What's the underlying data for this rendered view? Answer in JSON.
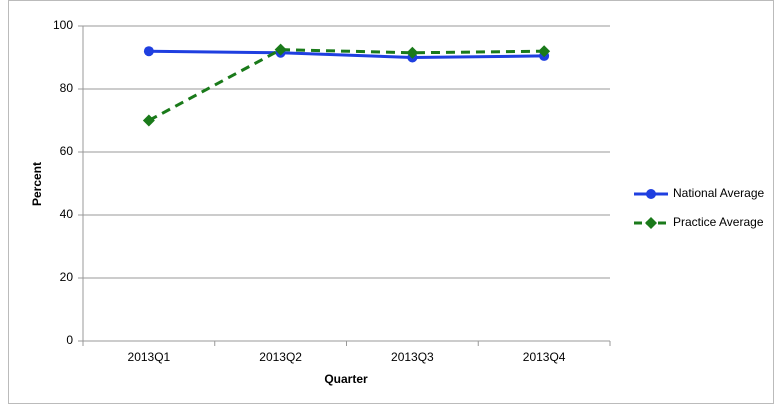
{
  "chart_data": {
    "type": "line",
    "categories": [
      "2013Q1",
      "2013Q2",
      "2013Q3",
      "2013Q4"
    ],
    "x_label": "Quarter",
    "y_label": "Percent",
    "series": [
      {
        "name": "National Average",
        "color": "#1f3fe0",
        "marker": "circle",
        "dash": false,
        "values": [
          92,
          91.5,
          90,
          90.5
        ]
      },
      {
        "name": "Practice Average",
        "color": "#1a7a1a",
        "marker": "diamond",
        "dash": true,
        "values": [
          70,
          92.5,
          91.5,
          92
        ]
      }
    ],
    "ylim": [
      0,
      100
    ],
    "yticks": [
      0,
      20,
      40,
      60,
      80,
      100
    ],
    "grid": true,
    "legend": "right"
  }
}
